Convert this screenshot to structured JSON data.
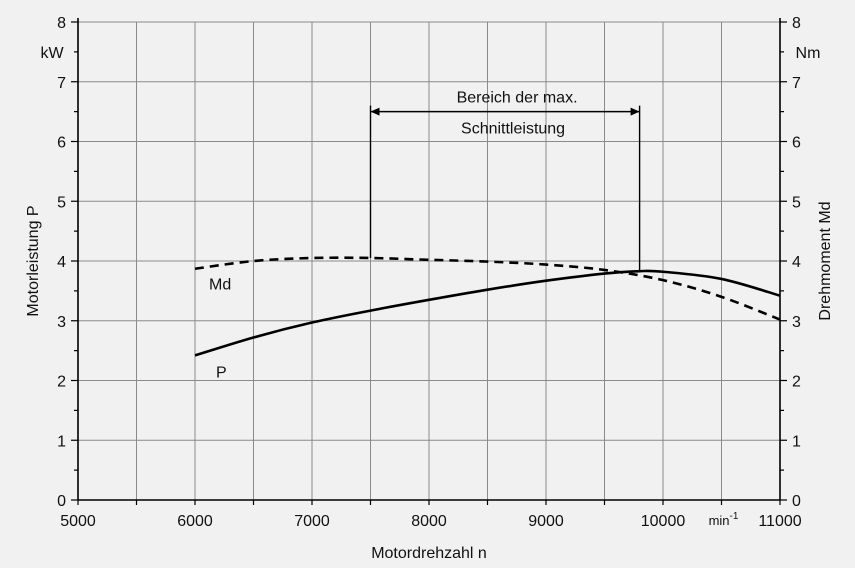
{
  "chart_data": {
    "type": "line",
    "title": "",
    "xlabel": "Motordrehzahl  n",
    "x_unit": "min⁻¹",
    "xlim": [
      5000,
      11000
    ],
    "x_ticks": [
      5000,
      6000,
      7000,
      8000,
      9000,
      10000,
      11000
    ],
    "ylabel_left": "Motorleistung  P",
    "y_unit_left": "kW",
    "ylabel_right": "Drehmoment  Md",
    "y_unit_right": "Nm",
    "ylim": [
      0,
      8
    ],
    "y_ticks": [
      0,
      1,
      2,
      3,
      4,
      5,
      6,
      7,
      8
    ],
    "grid": true,
    "series": [
      {
        "name": "P",
        "style": "solid",
        "x": [
          6000,
          6500,
          7000,
          7500,
          8000,
          8500,
          9000,
          9500,
          9800,
          10000,
          10500,
          11000
        ],
        "y": [
          2.42,
          2.72,
          2.97,
          3.17,
          3.35,
          3.52,
          3.67,
          3.79,
          3.83,
          3.82,
          3.7,
          3.42
        ]
      },
      {
        "name": "Md",
        "style": "dashed",
        "x": [
          6000,
          6500,
          7000,
          7500,
          8000,
          8500,
          9000,
          9500,
          10000,
          10500,
          11000
        ],
        "y": [
          3.87,
          4.0,
          4.05,
          4.05,
          4.02,
          3.99,
          3.94,
          3.85,
          3.68,
          3.4,
          3.02
        ]
      }
    ],
    "annotation": {
      "line1": "Bereich der max.",
      "line2": "Schnittleistung",
      "x_start": 7500,
      "x_end": 9800
    }
  }
}
